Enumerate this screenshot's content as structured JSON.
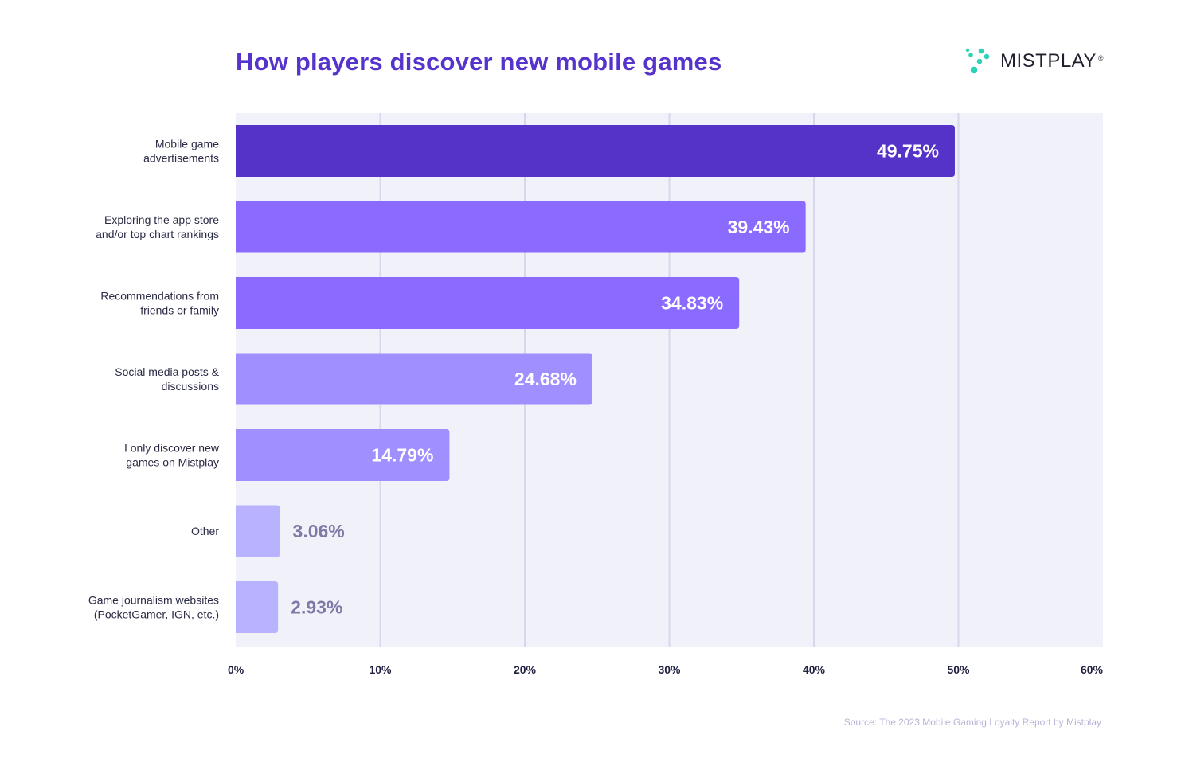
{
  "title": "How players discover new mobile games",
  "logo": {
    "text": "MISTPLAY",
    "registered": "®",
    "icon": "mistplay-dots-icon",
    "accent_color": "#2ed3b7"
  },
  "source": "Source: The 2023 Mobile Gaming Loyalty Report by Mistplay",
  "colors": {
    "title": "#5533cc",
    "plot_background": "#f1f1fa",
    "grid": "#d9d8ea",
    "tick_label": "#1f2140",
    "category_label": "#2a2b45",
    "value_label_inside": "#ffffff",
    "value_label_outside": "#7e7aa6"
  },
  "chart_data": {
    "type": "bar",
    "orientation": "horizontal",
    "title": "How players discover new mobile games",
    "xlabel": "",
    "ylabel": "",
    "xlim": [
      0,
      60
    ],
    "ticks": [
      0,
      10,
      20,
      30,
      40,
      50,
      60
    ],
    "tick_labels": [
      "0%",
      "10%",
      "20%",
      "30%",
      "40%",
      "50%",
      "60%"
    ],
    "grid": true,
    "categories": [
      [
        "Mobile game",
        "advertisements"
      ],
      [
        "Exploring the app store",
        "and/or top chart rankings"
      ],
      [
        "Recommendations from",
        "friends or family"
      ],
      [
        "Social media posts &",
        "discussions"
      ],
      [
        "I only discover new",
        "games on Mistplay"
      ],
      [
        "Other"
      ],
      [
        "Game journalism websites",
        "(PocketGamer, IGN, etc.)"
      ]
    ],
    "values": [
      49.75,
      39.43,
      34.83,
      24.68,
      14.79,
      3.06,
      2.93
    ],
    "value_labels": [
      "49.75%",
      "39.43%",
      "34.83%",
      "24.68%",
      "14.79%",
      "3.06%",
      "2.93%"
    ],
    "bar_colors": [
      "#5533c8",
      "#8a6aff",
      "#8a6aff",
      "#a08fff",
      "#a08fff",
      "#b8b2ff",
      "#b8b2ff"
    ]
  }
}
